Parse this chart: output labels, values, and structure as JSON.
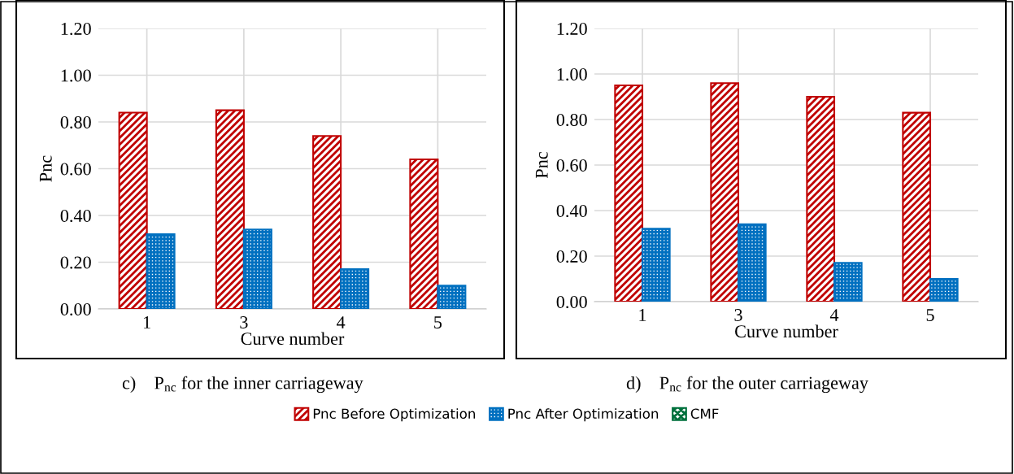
{
  "chart_data": [
    {
      "type": "bar",
      "ylabel": "Pnc",
      "xlabel": "Curve number",
      "categories": [
        "1",
        "3",
        "4",
        "5"
      ],
      "series": [
        {
          "name": "Pnc Before Optimization",
          "color": "#c00000",
          "values": [
            0.84,
            0.85,
            0.74,
            0.64
          ]
        },
        {
          "name": "Pnc After Optimization",
          "color": "#0070c0",
          "values": [
            0.32,
            0.34,
            0.17,
            0.1
          ]
        },
        {
          "name": "CMF",
          "color": "#00703c",
          "values": [
            null,
            null,
            null,
            null
          ]
        }
      ],
      "ylim": [
        0,
        1.2
      ],
      "yticks": [
        {
          "value": 0,
          "label": "0.00"
        },
        {
          "value": 0.2,
          "label": "0.20"
        },
        {
          "value": 0.4,
          "label": "0.40"
        },
        {
          "value": 0.6,
          "label": "0.60"
        },
        {
          "value": 0.8,
          "label": "0.80"
        },
        {
          "value": 1.0,
          "label": "1.00"
        },
        {
          "value": 1.2,
          "label": "1.20"
        }
      ],
      "grid": true,
      "legend": "bottom",
      "annotations": [
        "c)    P$_{nc}$ for the inner carriageway"
      ]
    },
    {
      "type": "bar",
      "ylabel": "Pnc",
      "xlabel": "Curve number",
      "categories": [
        "1",
        "3",
        "4",
        "5"
      ],
      "series": [
        {
          "color": "#c00000",
          "values": [
            0.95,
            0.96,
            0.9,
            0.83
          ]
        },
        {
          "color": "#0070c0",
          "values": [
            0.32,
            0.34,
            0.17,
            0.1
          ]
        }
      ],
      "ylim": [
        0,
        1.2
      ],
      "yticks": [
        {
          "value": 0,
          "label": "0.00"
        },
        {
          "value": 0.2,
          "label": "0.20"
        },
        {
          "value": 0.4,
          "label": "0.40"
        },
        {
          "value": 0.6,
          "label": "0.60"
        },
        {
          "value": 0.8,
          "label": "0.80"
        },
        {
          "value": 1.0,
          "label": "1.00"
        },
        {
          "value": 1.2,
          "label": "1.20"
        }
      ],
      "grid": true,
      "annotations": [
        "d)    P$_{nc}$ for the outer carriageway"
      ]
    }
  ]
}
